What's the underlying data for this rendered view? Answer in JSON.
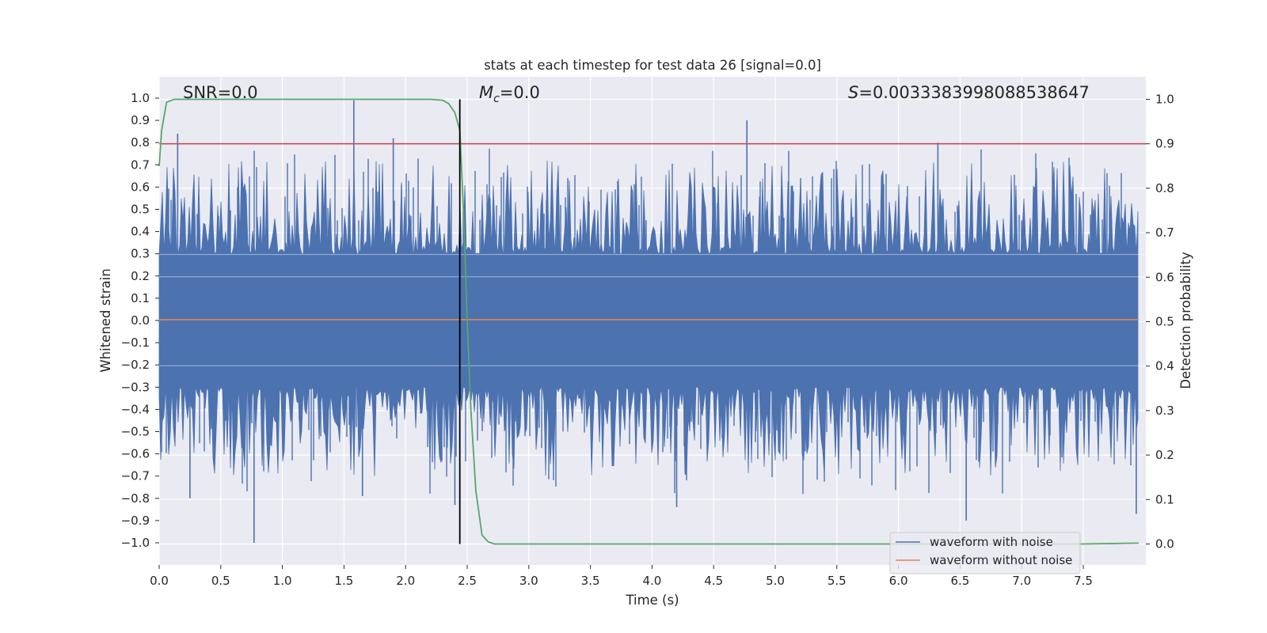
{
  "colors": {
    "background": "#eaeaf2",
    "grid": "#ffffff",
    "noisy": "#4c72b0",
    "clean": "#dd8452",
    "probability": "#55a868",
    "threshold": "#c44e52",
    "marker": "#000000"
  },
  "chart_data": {
    "type": "line",
    "title": "stats at each timestep for test data 26 [signal=0.0]",
    "xlabel": "Time (s)",
    "ylabel": "Whitened strain",
    "y2label": "Detection probability",
    "xlim": [
      0.0,
      8.0
    ],
    "ylim": [
      -1.1,
      1.1
    ],
    "y2lim": [
      -0.05,
      1.05
    ],
    "x_ticks": [
      0.0,
      0.5,
      1.0,
      1.5,
      2.0,
      2.5,
      3.0,
      3.5,
      4.0,
      4.5,
      5.0,
      5.5,
      6.0,
      6.5,
      7.0,
      7.5
    ],
    "x_tick_labels": [
      "0.0",
      "0.5",
      "1.0",
      "1.5",
      "2.0",
      "2.5",
      "3.0",
      "3.5",
      "4.0",
      "4.5",
      "5.0",
      "5.5",
      "6.0",
      "6.5",
      "7.0",
      "7.5"
    ],
    "y_ticks": [
      1.0,
      0.9,
      0.8,
      0.7,
      0.6,
      0.5,
      0.4,
      0.3,
      0.2,
      0.1,
      0.0,
      -0.1,
      -0.2,
      -0.3,
      -0.4,
      -0.5,
      -0.6,
      -0.7,
      -0.8,
      -0.9,
      -1.0
    ],
    "y_tick_labels": [
      "1.0",
      "0.9",
      "0.8",
      "0.7",
      "0.6",
      "0.5",
      "0.4",
      "0.3",
      "0.2",
      "0.1",
      "0.0",
      "−0.1",
      "−0.2",
      "−0.3",
      "−0.4",
      "−0.5",
      "−0.6",
      "−0.7",
      "−0.8",
      "−0.9",
      "−1.0"
    ],
    "y2_ticks": [
      1.0,
      0.9,
      0.8,
      0.7,
      0.6,
      0.5,
      0.4,
      0.3,
      0.2,
      0.1,
      0.0
    ],
    "y2_tick_labels": [
      "1.0",
      "0.9",
      "0.8",
      "0.7",
      "0.6",
      "0.5",
      "0.4",
      "0.3",
      "0.2",
      "0.1",
      "0.0"
    ],
    "annotations": {
      "snr": "SNR=0.0",
      "mc_symbol": "M",
      "mc_sub": "c",
      "mc_value": "=0.0",
      "s_symbol": "S",
      "s_value": "=0.0033383998088538647"
    },
    "threshold": 0.9,
    "marker_time": 2.44,
    "noise_spikes": [
      {
        "t": 0.15,
        "v": 0.84
      },
      {
        "t": 1.58,
        "v": 0.99
      },
      {
        "t": 1.9,
        "v": 0.82
      },
      {
        "t": 4.77,
        "v": 0.9
      },
      {
        "t": 6.32,
        "v": 0.8
      },
      {
        "t": 0.25,
        "v": -0.8
      },
      {
        "t": 0.77,
        "v": -1.0
      },
      {
        "t": 1.65,
        "v": -0.79
      },
      {
        "t": 2.4,
        "v": -0.83
      },
      {
        "t": 4.2,
        "v": -0.84
      },
      {
        "t": 6.55,
        "v": -0.9
      },
      {
        "t": 7.93,
        "v": -0.87
      }
    ],
    "series": [
      {
        "name": "waveform with noise",
        "description": "whitened noisy strain, dense band between about -0.4 and 0.4 with spikes up to about ±1.0"
      },
      {
        "name": "waveform without noise",
        "x": [
          0.0,
          7.95
        ],
        "y": [
          0.0,
          0.0
        ]
      },
      {
        "name": "detection probability",
        "axis": "right",
        "x": [
          0.0,
          0.02,
          0.06,
          0.12,
          0.5,
          1.0,
          1.5,
          2.0,
          2.2,
          2.3,
          2.35,
          2.4,
          2.44,
          2.47,
          2.5,
          2.53,
          2.57,
          2.62,
          2.67,
          2.72,
          3.0,
          5.0,
          7.0,
          7.5,
          7.95
        ],
        "y": [
          0.85,
          0.93,
          0.993,
          1.0,
          1.0,
          1.0,
          1.0,
          1.0,
          1.0,
          0.998,
          0.99,
          0.97,
          0.93,
          0.75,
          0.5,
          0.3,
          0.12,
          0.02,
          0.005,
          0.0,
          0.0,
          0.0,
          0.0,
          0.0,
          0.002
        ]
      }
    ],
    "legend": {
      "position": "lower-right",
      "entries": [
        "waveform with noise",
        "waveform without noise"
      ]
    }
  }
}
